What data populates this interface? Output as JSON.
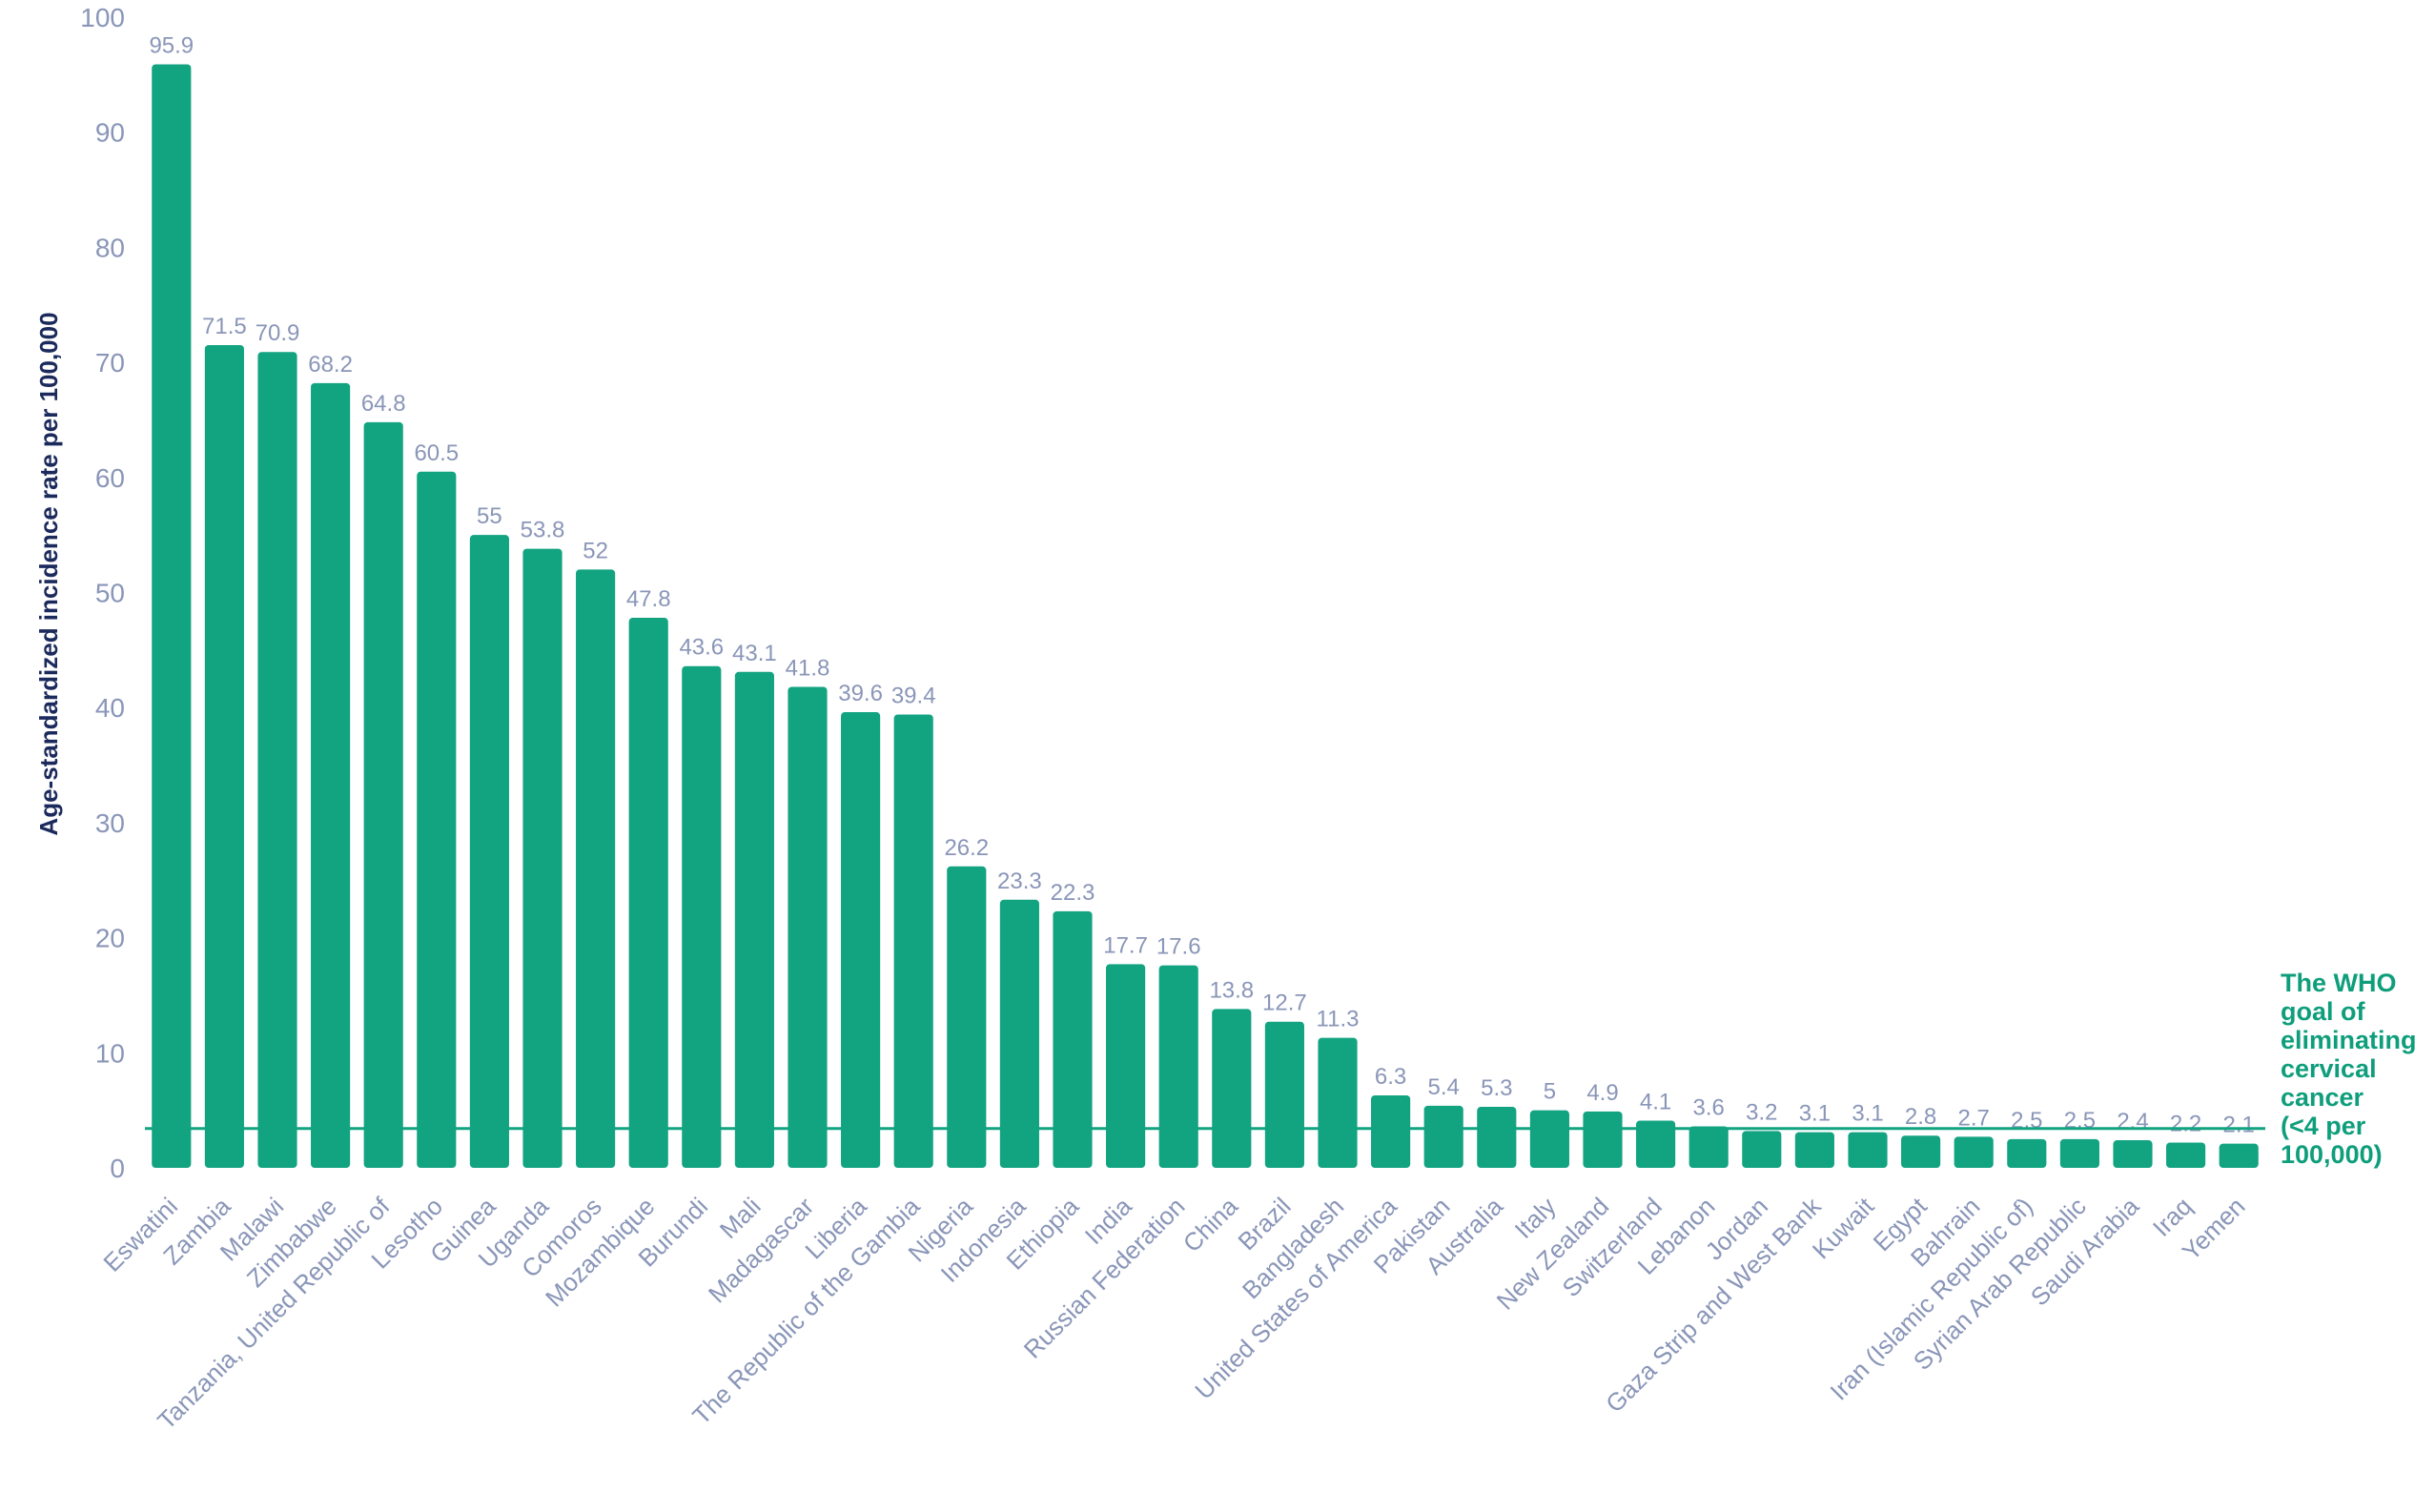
{
  "chart_data": {
    "type": "bar",
    "ylabel": "Age-standardized incidence rate per 100,000",
    "xlabel": "",
    "ylim": [
      0,
      100
    ],
    "yticks": [
      0,
      10,
      20,
      30,
      40,
      50,
      60,
      70,
      80,
      90,
      100
    ],
    "grid": false,
    "bar_color": "#12a381",
    "categories": [
      "Eswatini",
      "Zambia",
      "Malawi",
      "Zimbabwe",
      "Tanzania, United Republic of",
      "Lesotho",
      "Guinea",
      "Uganda",
      "Comoros",
      "Mozambique",
      "Burundi",
      "Mali",
      "Madagascar",
      "Liberia",
      "The Republic of the Gambia",
      "Nigeria",
      "Indonesia",
      "Ethiopia",
      "India",
      "Russian Federation",
      "China",
      "Brazil",
      "Bangladesh",
      "United States of America",
      "Pakistan",
      "Australia",
      "Italy",
      "New Zealand",
      "Switzerland",
      "Lebanon",
      "Jordan",
      "Gaza Strip and West Bank",
      "Kuwait",
      "Egypt",
      "Bahrain",
      "Iran (Islamic Republic of)",
      "Syrian Arab Republic",
      "Saudi Arabia",
      "Iraq",
      "Yemen"
    ],
    "values": [
      95.9,
      71.5,
      70.9,
      68.2,
      64.8,
      60.5,
      55,
      53.8,
      52,
      47.8,
      43.6,
      43.1,
      41.8,
      39.6,
      39.4,
      26.2,
      23.3,
      22.3,
      17.7,
      17.6,
      13.8,
      12.7,
      11.3,
      6.3,
      5.4,
      5.3,
      5,
      4.9,
      4.1,
      3.6,
      3.2,
      3.1,
      3.1,
      2.8,
      2.7,
      2.5,
      2.5,
      2.4,
      2.2,
      2.1
    ],
    "reference_line": {
      "value": 4,
      "color": "#12a381",
      "label_lines": [
        "The WHO",
        "goal of",
        "eliminating",
        "cervical",
        "cancer",
        "(<4 per",
        "100,000)"
      ]
    }
  }
}
